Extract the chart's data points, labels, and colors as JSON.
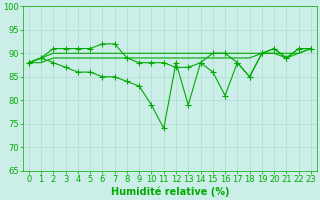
{
  "title": "",
  "xlabel": "Humidité relative (%)",
  "ylabel": "",
  "background_color": "#cceee8",
  "grid_color": "#aaddcc",
  "line_color": "#00aa00",
  "x": [
    0,
    1,
    2,
    3,
    4,
    5,
    6,
    7,
    8,
    9,
    10,
    11,
    12,
    13,
    14,
    15,
    16,
    17,
    18,
    19,
    20,
    21,
    22,
    23
  ],
  "line_upper": [
    88,
    89,
    91,
    91,
    91,
    91,
    92,
    92,
    89,
    88,
    88,
    88,
    87,
    87,
    88,
    90,
    90,
    88,
    85,
    90,
    91,
    89,
    91,
    91
  ],
  "line_flat1": [
    88,
    89,
    90,
    90,
    90,
    90,
    90,
    90,
    90,
    90,
    90,
    90,
    90,
    90,
    90,
    90,
    90,
    90,
    90,
    90,
    90,
    90,
    90,
    91
  ],
  "line_flat2": [
    88,
    88,
    89,
    89,
    89,
    89,
    89,
    89,
    89,
    89,
    89,
    89,
    89,
    89,
    89,
    89,
    89,
    89,
    89,
    90,
    90,
    89,
    90,
    91
  ],
  "line_lower": [
    88,
    89,
    88,
    87,
    86,
    86,
    85,
    85,
    84,
    83,
    79,
    74,
    88,
    79,
    88,
    86,
    81,
    88,
    85,
    90,
    91,
    89,
    91,
    91
  ],
  "ylim": [
    65,
    100
  ],
  "xlim_min": -0.5,
  "xlim_max": 23.5,
  "yticks": [
    65,
    70,
    75,
    80,
    85,
    90,
    95,
    100
  ],
  "xticks": [
    0,
    1,
    2,
    3,
    4,
    5,
    6,
    7,
    8,
    9,
    10,
    11,
    12,
    13,
    14,
    15,
    16,
    17,
    18,
    19,
    20,
    21,
    22,
    23
  ],
  "marker": "+",
  "markersize": 4,
  "linewidth": 0.8,
  "xlabel_color": "#00aa00",
  "xlabel_fontsize": 7,
  "tick_fontsize": 6,
  "tick_color": "#00aa00"
}
